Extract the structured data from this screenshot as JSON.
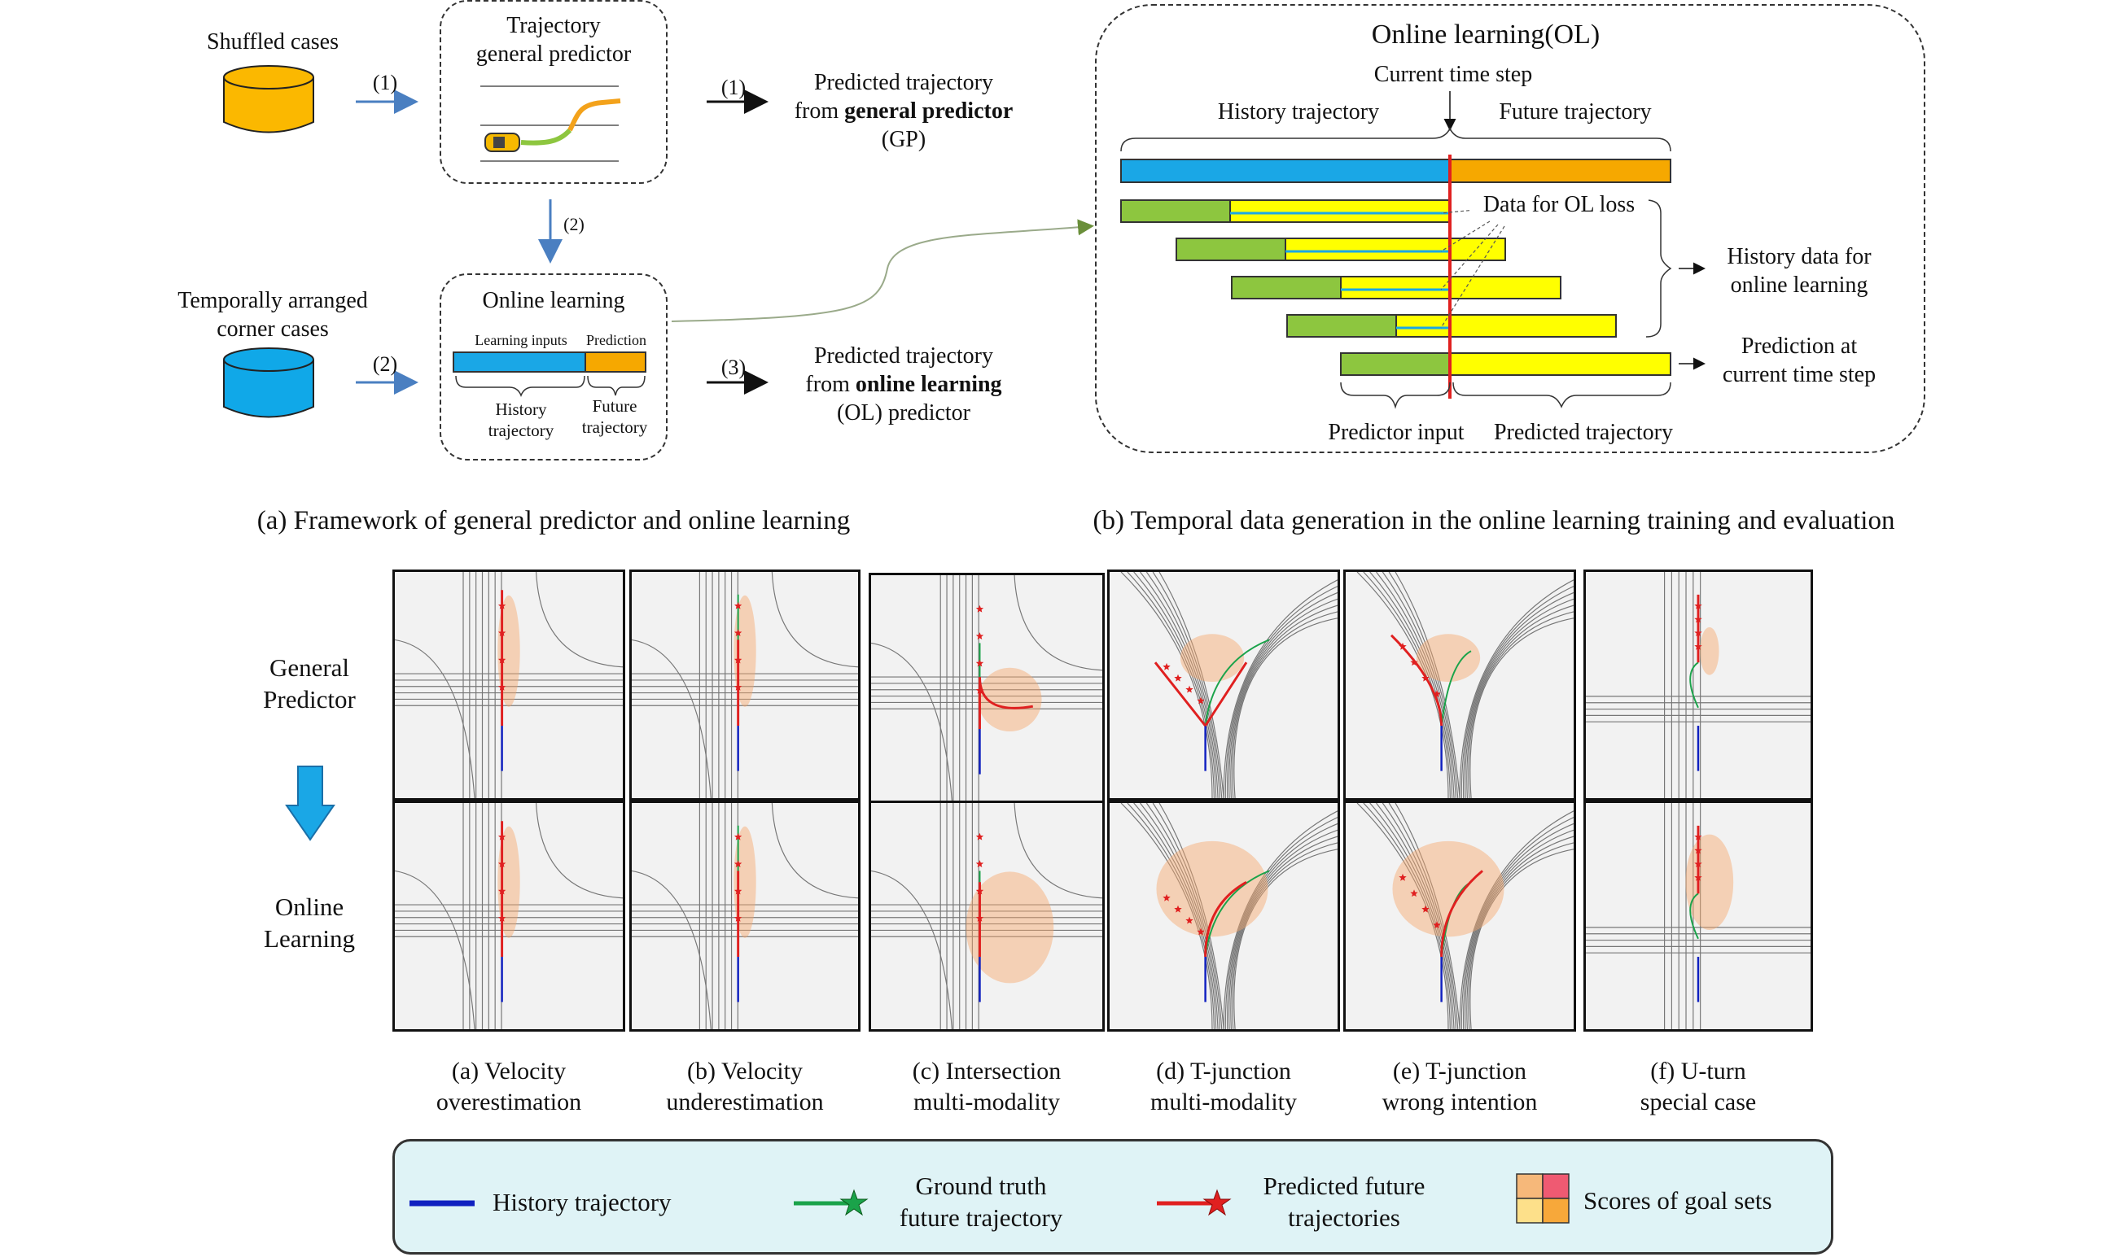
{
  "top": {
    "shuffled_cases": "Shuffled cases",
    "temporal_cases_line1": "Temporally arranged",
    "temporal_cases_line2": "corner cases",
    "step1": "(1)",
    "step2": "(2)",
    "step3": "(3)",
    "gp_box_line1": "Trajectory",
    "gp_box_line2": "general predictor",
    "ol_box_title": "Online learning",
    "learning_inputs": "Learning inputs",
    "prediction": "Prediction",
    "history_traj_line1": "History",
    "history_traj_line2": "trajectory",
    "future_traj_line1": "Future",
    "future_traj_line2": "trajectory",
    "gp_out_line1": "Predicted trajectory",
    "gp_out_line2_pre": "from ",
    "gp_out_line2_bold": "general predictor",
    "gp_out_line3": "(GP)",
    "ol_out_line1": "Predicted trajectory",
    "ol_out_line2_pre": "from ",
    "ol_out_line2_bold": "online learning",
    "ol_out_line3": "(OL) predictor",
    "caption_a": "(a) Framework of general predictor and online learning",
    "caption_b": "(b) Temporal data generation in the online learning training and evaluation"
  },
  "ol_panel": {
    "title": "Online learning(OL)",
    "current_step": "Current time step",
    "history_trajectory": "History trajectory",
    "future_trajectory": "Future trajectory",
    "data_for_ol_loss": "Data for OL loss",
    "history_data_line1": "History data for",
    "history_data_line2": "online learning",
    "prediction_line1": "Prediction at",
    "prediction_line2": "current time step",
    "predictor_input": "Predictor input",
    "predicted_trajectory": "Predicted trajectory"
  },
  "grid": {
    "row_label_1_line1": "General",
    "row_label_1_line2": "Predictor",
    "row_label_2_line1": "Online",
    "row_label_2_line2": "Learning",
    "columns": [
      {
        "line1": "(a) Velocity",
        "line2": "overestimation"
      },
      {
        "line1": "(b) Velocity",
        "line2": "underestimation"
      },
      {
        "line1": "(c) Intersection",
        "line2": "multi-modality"
      },
      {
        "line1": "(d) T-junction",
        "line2": "multi-modality"
      },
      {
        "line1": "(e) T-junction",
        "line2": "wrong intention"
      },
      {
        "line1": "(f) U-turn",
        "line2": "special case"
      }
    ]
  },
  "legend": {
    "history": "History trajectory",
    "gt_line1": "Ground truth",
    "gt_line2": "future trajectory",
    "pred_line1": "Predicted future",
    "pred_line2": "trajectories",
    "scores": "Scores of goal sets"
  },
  "colors": {
    "blue": "#1aa7e6",
    "orange": "#f6a800",
    "green": "#8dc63f",
    "yellow": "#ffff00",
    "red": "#e02020",
    "arrow": "#4a7fc1"
  }
}
